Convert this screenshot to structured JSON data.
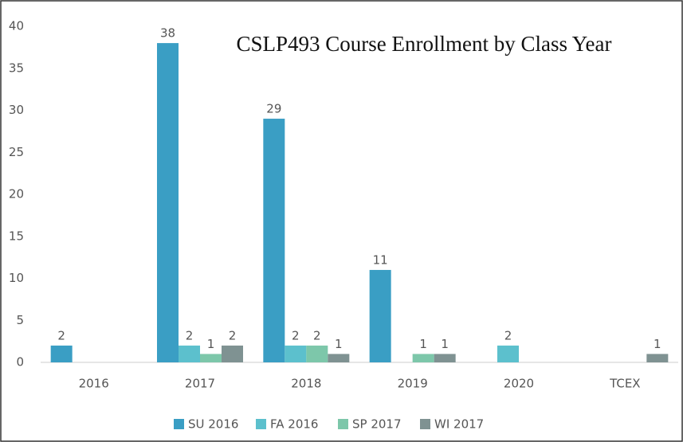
{
  "chart_data": {
    "type": "bar",
    "title": "CSLP493 Course Enrollment by Class Year",
    "categories": [
      "2016",
      "2017",
      "2018",
      "2019",
      "2020",
      "TCEX"
    ],
    "series": [
      {
        "name": "SU 2016",
        "color": "#3a9ec4",
        "values": [
          2,
          38,
          29,
          11,
          null,
          null
        ]
      },
      {
        "name": "FA 2016",
        "color": "#5cc0cd",
        "values": [
          null,
          2,
          2,
          null,
          2,
          null
        ]
      },
      {
        "name": "SP 2017",
        "color": "#7dc7aa",
        "values": [
          null,
          1,
          2,
          1,
          null,
          null
        ]
      },
      {
        "name": "WI 2017",
        "color": "#7f9292",
        "values": [
          null,
          2,
          1,
          1,
          null,
          1
        ]
      }
    ],
    "ylim": [
      0,
      40
    ],
    "yticks": [
      0,
      5,
      10,
      15,
      20,
      25,
      30,
      35,
      40
    ],
    "grid": false,
    "legend": "bottom"
  }
}
